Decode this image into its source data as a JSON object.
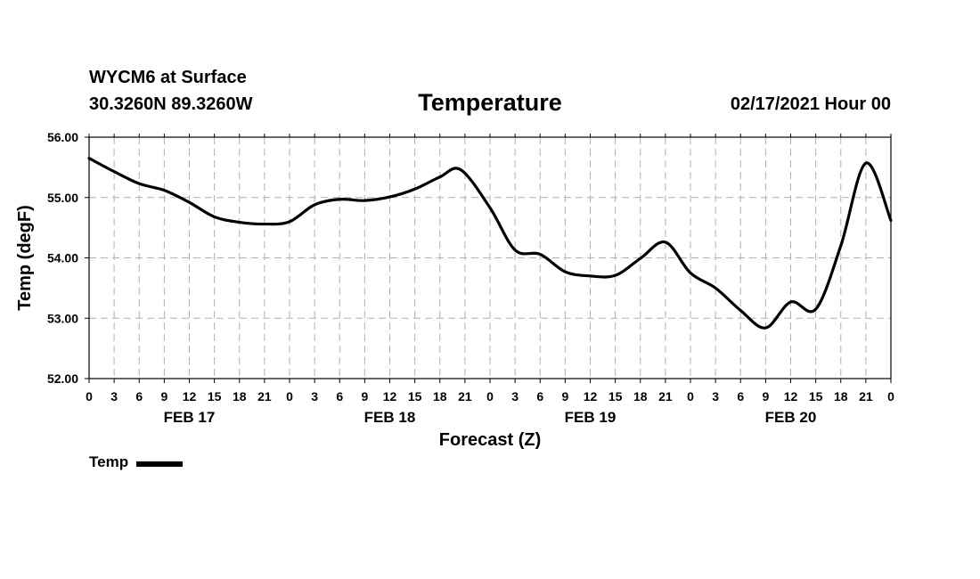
{
  "header": {
    "station": "WYCM6 at Surface",
    "coords": "30.3260N 89.3260W",
    "valid": "02/17/2021 Hour 00"
  },
  "legend": {
    "label": "Temp",
    "color": "#000000"
  },
  "chart_data": {
    "type": "line",
    "title": "Temperature",
    "xlabel": "Forecast (Z)",
    "ylabel": "Temp (degF)",
    "ylim": [
      52.0,
      56.0
    ],
    "yticks": [
      "52.00",
      "53.00",
      "54.00",
      "55.00",
      "56.00"
    ],
    "xlim": [
      0,
      96
    ],
    "x_tick_labels": [
      "0",
      "3",
      "6",
      "9",
      "12",
      "15",
      "18",
      "21",
      "0",
      "3",
      "6",
      "9",
      "12",
      "15",
      "18",
      "21",
      "0",
      "3",
      "6",
      "9",
      "12",
      "15",
      "18",
      "21",
      "0",
      "3",
      "6",
      "9",
      "12",
      "15",
      "18",
      "21",
      "0"
    ],
    "day_labels": [
      {
        "label": "FEB 17",
        "hour": 12
      },
      {
        "label": "FEB 18",
        "hour": 36
      },
      {
        "label": "FEB 19",
        "hour": 60
      },
      {
        "label": "FEB 20",
        "hour": 84
      }
    ],
    "grid": true,
    "series": [
      {
        "name": "Temp",
        "color": "#000000",
        "x": [
          0,
          3,
          6,
          9,
          12,
          15,
          18,
          21,
          24,
          27,
          30,
          33,
          36,
          39,
          42,
          44.5,
          48,
          51,
          54,
          57,
          60,
          63,
          66,
          69,
          72,
          75,
          78,
          81,
          84,
          87,
          90,
          93,
          96
        ],
        "y": [
          55.65,
          55.43,
          55.23,
          55.12,
          54.92,
          54.68,
          54.59,
          54.56,
          54.6,
          54.88,
          54.97,
          54.95,
          55.01,
          55.14,
          55.34,
          55.46,
          54.83,
          54.13,
          54.06,
          53.77,
          53.7,
          53.71,
          53.99,
          54.26,
          53.75,
          53.5,
          53.13,
          52.84,
          53.27,
          53.15,
          54.2,
          55.57,
          54.62
        ]
      }
    ]
  }
}
